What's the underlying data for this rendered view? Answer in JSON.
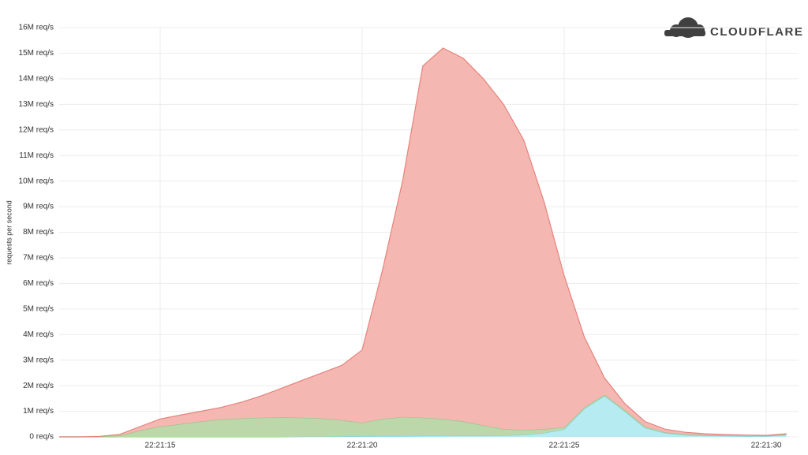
{
  "chart_data": {
    "type": "stacked_area",
    "logo": "CLOUDFLARE",
    "y_label": "requests per second",
    "x": [
      "22:21:12.5",
      "22:21:13",
      "22:21:13.5",
      "22:21:14",
      "22:21:14.5",
      "22:21:15",
      "22:21:15.5",
      "22:21:16",
      "22:21:16.5",
      "22:21:17",
      "22:21:17.5",
      "22:21:18",
      "22:21:18.5",
      "22:21:19",
      "22:21:19.5",
      "22:21:20",
      "22:21:20.5",
      "22:21:21",
      "22:21:21.5",
      "22:21:22",
      "22:21:22.5",
      "22:21:23",
      "22:21:23.5",
      "22:21:24",
      "22:21:24.5",
      "22:21:25",
      "22:21:25.5",
      "22:21:26",
      "22:21:26.5",
      "22:21:27",
      "22:21:27.5",
      "22:21:28",
      "22:21:28.5",
      "22:21:29",
      "22:21:29.5",
      "22:21:30",
      "22:21:30.5"
    ],
    "series": [
      {
        "color": "#b5ebf1",
        "line_color": "#7fd3de",
        "values": [
          0,
          0,
          0,
          0,
          0,
          0,
          0,
          0,
          0,
          0,
          0,
          0,
          10000,
          10000,
          20000,
          20000,
          30000,
          30000,
          40000,
          40000,
          50000,
          50000,
          60000,
          80000,
          150000,
          300000,
          1100000,
          1600000,
          1000000,
          350000,
          150000,
          80000,
          50000,
          40000,
          30000,
          30000,
          80000
        ]
      },
      {
        "color": "#bcd8aa",
        "line_color": "#96c284",
        "values": [
          0,
          0,
          10000,
          50000,
          250000,
          400000,
          500000,
          600000,
          680000,
          720000,
          750000,
          760000,
          740000,
          710000,
          630000,
          530000,
          670000,
          750000,
          710000,
          660000,
          550000,
          400000,
          240000,
          190000,
          150000,
          80000,
          50000,
          50000,
          50000,
          50000,
          30000,
          20000,
          20000,
          10000,
          10000,
          10000,
          20000
        ]
      },
      {
        "color": "#f5b7b2",
        "line_color": "#e5837b",
        "values": [
          0,
          0,
          10000,
          50000,
          150000,
          300000,
          350000,
          400000,
          470000,
          630000,
          850000,
          1140000,
          1450000,
          1780000,
          2150000,
          2850000,
          5800000,
          9220000,
          13750000,
          14500000,
          14200000,
          13550000,
          12700000,
          11330000,
          8900000,
          5920000,
          2750000,
          650000,
          250000,
          200000,
          120000,
          80000,
          50000,
          40000,
          30000,
          20000,
          20000
        ]
      }
    ],
    "xlim": [
      "22:21:12.5",
      "22:21:30.8"
    ],
    "xticks": [
      "22:21:15",
      "22:21:20",
      "22:21:25",
      "22:21:30"
    ],
    "ylim": [
      0,
      16000000
    ],
    "yticks": [
      {
        "value": 0,
        "label": "0 req/s"
      },
      {
        "value": 1000000,
        "label": "1M req/s"
      },
      {
        "value": 2000000,
        "label": "2M req/s"
      },
      {
        "value": 3000000,
        "label": "3M req/s"
      },
      {
        "value": 4000000,
        "label": "4M req/s"
      },
      {
        "value": 5000000,
        "label": "5M req/s"
      },
      {
        "value": 6000000,
        "label": "6M req/s"
      },
      {
        "value": 7000000,
        "label": "7M req/s"
      },
      {
        "value": 8000000,
        "label": "8M req/s"
      },
      {
        "value": 9000000,
        "label": "9M req/s"
      },
      {
        "value": 10000000,
        "label": "10M req/s"
      },
      {
        "value": 11000000,
        "label": "11M req/s"
      },
      {
        "value": 12000000,
        "label": "12M req/s"
      },
      {
        "value": 13000000,
        "label": "13M req/s"
      },
      {
        "value": 14000000,
        "label": "14M req/s"
      },
      {
        "value": 15000000,
        "label": "15M req/s"
      },
      {
        "value": 16000000,
        "label": "16M req/s"
      }
    ],
    "grid": true
  }
}
